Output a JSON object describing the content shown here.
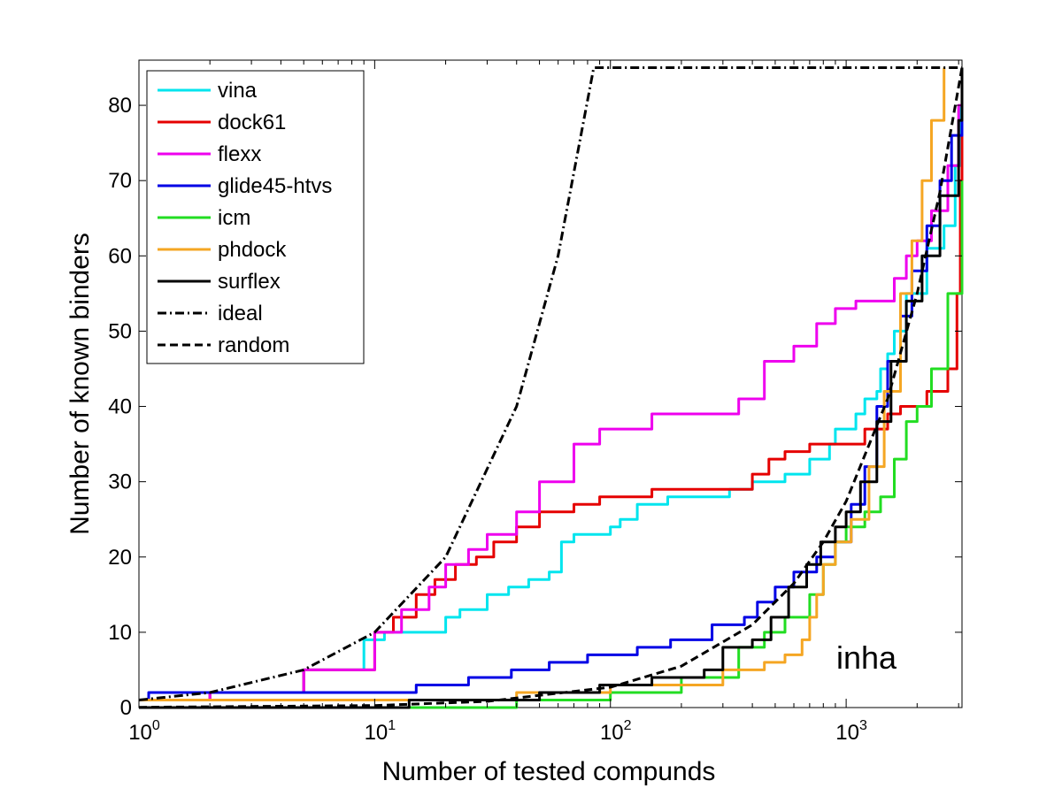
{
  "chart_data": {
    "type": "line",
    "xlabel": "Number of tested compunds",
    "ylabel": "Number of known binders",
    "annotation": "inha",
    "xscale": "log",
    "xlim": [
      1,
      3100
    ],
    "ylim": [
      0,
      86
    ],
    "grid": false,
    "legend_position": "top-left",
    "x_ticks": [
      {
        "value": 1,
        "base": "10",
        "exp": "0"
      },
      {
        "value": 10,
        "base": "10",
        "exp": "1"
      },
      {
        "value": 100,
        "base": "10",
        "exp": "2"
      },
      {
        "value": 1000,
        "base": "10",
        "exp": "3"
      }
    ],
    "y_ticks": [
      0,
      10,
      20,
      30,
      40,
      50,
      60,
      70,
      80
    ],
    "series": [
      {
        "name": "vina",
        "color": "#00e5ee",
        "style": "solid",
        "points": [
          [
            1,
            1
          ],
          [
            2,
            2
          ],
          [
            5,
            5
          ],
          [
            9,
            9
          ],
          [
            11,
            10
          ],
          [
            17,
            10
          ],
          [
            20,
            12
          ],
          [
            23,
            13
          ],
          [
            30,
            15
          ],
          [
            37,
            16
          ],
          [
            45,
            17
          ],
          [
            55,
            18
          ],
          [
            62,
            22
          ],
          [
            70,
            23
          ],
          [
            90,
            23
          ],
          [
            100,
            24
          ],
          [
            110,
            25
          ],
          [
            130,
            27
          ],
          [
            175,
            28
          ],
          [
            320,
            29
          ],
          [
            400,
            30
          ],
          [
            550,
            31
          ],
          [
            700,
            33
          ],
          [
            850,
            35
          ],
          [
            900,
            37
          ],
          [
            1000,
            37
          ],
          [
            1100,
            39
          ],
          [
            1200,
            41
          ],
          [
            1350,
            42
          ],
          [
            1400,
            45
          ],
          [
            1500,
            47
          ],
          [
            1600,
            50
          ],
          [
            1800,
            55
          ],
          [
            2200,
            61
          ],
          [
            2600,
            64
          ],
          [
            2900,
            72
          ],
          [
            3050,
            80
          ]
        ]
      },
      {
        "name": "dock61",
        "color": "#e50000",
        "style": "solid",
        "points": [
          [
            1,
            1
          ],
          [
            2,
            2
          ],
          [
            5,
            5
          ],
          [
            10,
            10
          ],
          [
            12,
            12
          ],
          [
            15,
            15
          ],
          [
            18,
            17
          ],
          [
            22,
            19
          ],
          [
            27,
            20
          ],
          [
            32,
            22
          ],
          [
            40,
            24
          ],
          [
            50,
            26
          ],
          [
            70,
            27
          ],
          [
            90,
            28
          ],
          [
            150,
            29
          ],
          [
            300,
            29
          ],
          [
            400,
            31
          ],
          [
            470,
            33
          ],
          [
            550,
            34
          ],
          [
            700,
            35
          ],
          [
            900,
            35
          ],
          [
            1200,
            37
          ],
          [
            1500,
            39
          ],
          [
            1700,
            40
          ],
          [
            2200,
            42
          ],
          [
            2700,
            45
          ],
          [
            2950,
            55
          ],
          [
            3050,
            70
          ],
          [
            3100,
            83
          ]
        ]
      },
      {
        "name": "flexx",
        "color": "#ee00ee",
        "style": "solid",
        "points": [
          [
            1,
            1
          ],
          [
            2,
            2
          ],
          [
            5,
            5
          ],
          [
            10,
            10
          ],
          [
            13,
            13
          ],
          [
            17,
            16
          ],
          [
            20,
            19
          ],
          [
            25,
            21
          ],
          [
            30,
            23
          ],
          [
            40,
            26
          ],
          [
            50,
            30
          ],
          [
            70,
            35
          ],
          [
            90,
            37
          ],
          [
            150,
            39
          ],
          [
            300,
            39
          ],
          [
            350,
            41
          ],
          [
            450,
            46
          ],
          [
            600,
            48
          ],
          [
            750,
            51
          ],
          [
            900,
            53
          ],
          [
            1100,
            54
          ],
          [
            1300,
            54
          ],
          [
            1600,
            57
          ],
          [
            1800,
            60
          ],
          [
            2000,
            62
          ],
          [
            2300,
            66
          ],
          [
            2700,
            72
          ],
          [
            3000,
            80
          ],
          [
            3100,
            85
          ]
        ]
      },
      {
        "name": "glide45-htvs",
        "color": "#0000e5",
        "style": "solid",
        "points": [
          [
            1,
            1
          ],
          [
            1.1,
            2
          ],
          [
            12,
            2
          ],
          [
            15,
            3
          ],
          [
            25,
            4
          ],
          [
            38,
            5
          ],
          [
            55,
            6
          ],
          [
            80,
            7
          ],
          [
            130,
            8
          ],
          [
            180,
            9
          ],
          [
            270,
            11
          ],
          [
            370,
            12
          ],
          [
            420,
            14
          ],
          [
            500,
            16
          ],
          [
            600,
            18
          ],
          [
            750,
            20
          ],
          [
            900,
            22
          ],
          [
            1050,
            27
          ],
          [
            1200,
            32
          ],
          [
            1350,
            40
          ],
          [
            1500,
            46
          ],
          [
            1700,
            52
          ],
          [
            1900,
            58
          ],
          [
            2200,
            64
          ],
          [
            2500,
            70
          ],
          [
            2800,
            76
          ],
          [
            3100,
            82
          ]
        ]
      },
      {
        "name": "icm",
        "color": "#22dd22",
        "style": "solid",
        "points": [
          [
            1,
            0
          ],
          [
            30,
            0
          ],
          [
            40,
            1
          ],
          [
            100,
            2
          ],
          [
            200,
            4
          ],
          [
            350,
            8
          ],
          [
            450,
            10
          ],
          [
            550,
            12
          ],
          [
            700,
            15
          ],
          [
            800,
            19
          ],
          [
            900,
            22
          ],
          [
            1000,
            24
          ],
          [
            1200,
            26
          ],
          [
            1400,
            28
          ],
          [
            1600,
            33
          ],
          [
            1800,
            38
          ],
          [
            2000,
            40
          ],
          [
            2300,
            45
          ],
          [
            2700,
            55
          ],
          [
            3100,
            70
          ]
        ]
      },
      {
        "name": "phdock",
        "color": "#f5a623",
        "style": "solid",
        "points": [
          [
            1,
            1
          ],
          [
            12,
            1
          ],
          [
            40,
            2
          ],
          [
            100,
            3
          ],
          [
            300,
            5
          ],
          [
            450,
            6
          ],
          [
            550,
            7
          ],
          [
            650,
            9
          ],
          [
            700,
            12
          ],
          [
            750,
            15
          ],
          [
            800,
            19
          ],
          [
            900,
            22
          ],
          [
            1050,
            25
          ],
          [
            1250,
            32
          ],
          [
            1450,
            42
          ],
          [
            1700,
            55
          ],
          [
            1900,
            62
          ],
          [
            2100,
            70
          ],
          [
            2300,
            78
          ],
          [
            2600,
            85
          ]
        ]
      },
      {
        "name": "surflex",
        "color": "#000000",
        "style": "solid",
        "points": [
          [
            1,
            0
          ],
          [
            10,
            0
          ],
          [
            14,
            1
          ],
          [
            50,
            2
          ],
          [
            90,
            3
          ],
          [
            150,
            4
          ],
          [
            250,
            5
          ],
          [
            300,
            8
          ],
          [
            400,
            9
          ],
          [
            480,
            12
          ],
          [
            570,
            16
          ],
          [
            680,
            19
          ],
          [
            780,
            22
          ],
          [
            900,
            24
          ],
          [
            1000,
            26
          ],
          [
            1150,
            30
          ],
          [
            1350,
            38
          ],
          [
            1550,
            46
          ],
          [
            1800,
            54
          ],
          [
            2100,
            60
          ],
          [
            2500,
            68
          ],
          [
            3000,
            78
          ],
          [
            3100,
            85
          ]
        ]
      },
      {
        "name": "ideal",
        "color": "#000000",
        "style": "dashdot",
        "points": [
          [
            1,
            1
          ],
          [
            2,
            2
          ],
          [
            5,
            5
          ],
          [
            10,
            10
          ],
          [
            20,
            20
          ],
          [
            40,
            40
          ],
          [
            60,
            60
          ],
          [
            85,
            85
          ],
          [
            3100,
            85
          ]
        ]
      },
      {
        "name": "random",
        "color": "#000000",
        "style": "dashed",
        "points": [
          [
            1,
            0.03
          ],
          [
            10,
            0.27
          ],
          [
            30,
            0.82
          ],
          [
            100,
            2.7
          ],
          [
            200,
            5.5
          ],
          [
            400,
            11
          ],
          [
            600,
            16.5
          ],
          [
            800,
            22
          ],
          [
            1000,
            27.4
          ],
          [
            1500,
            41
          ],
          [
            2000,
            55
          ],
          [
            2500,
            68.5
          ],
          [
            3100,
            85
          ]
        ]
      }
    ]
  }
}
